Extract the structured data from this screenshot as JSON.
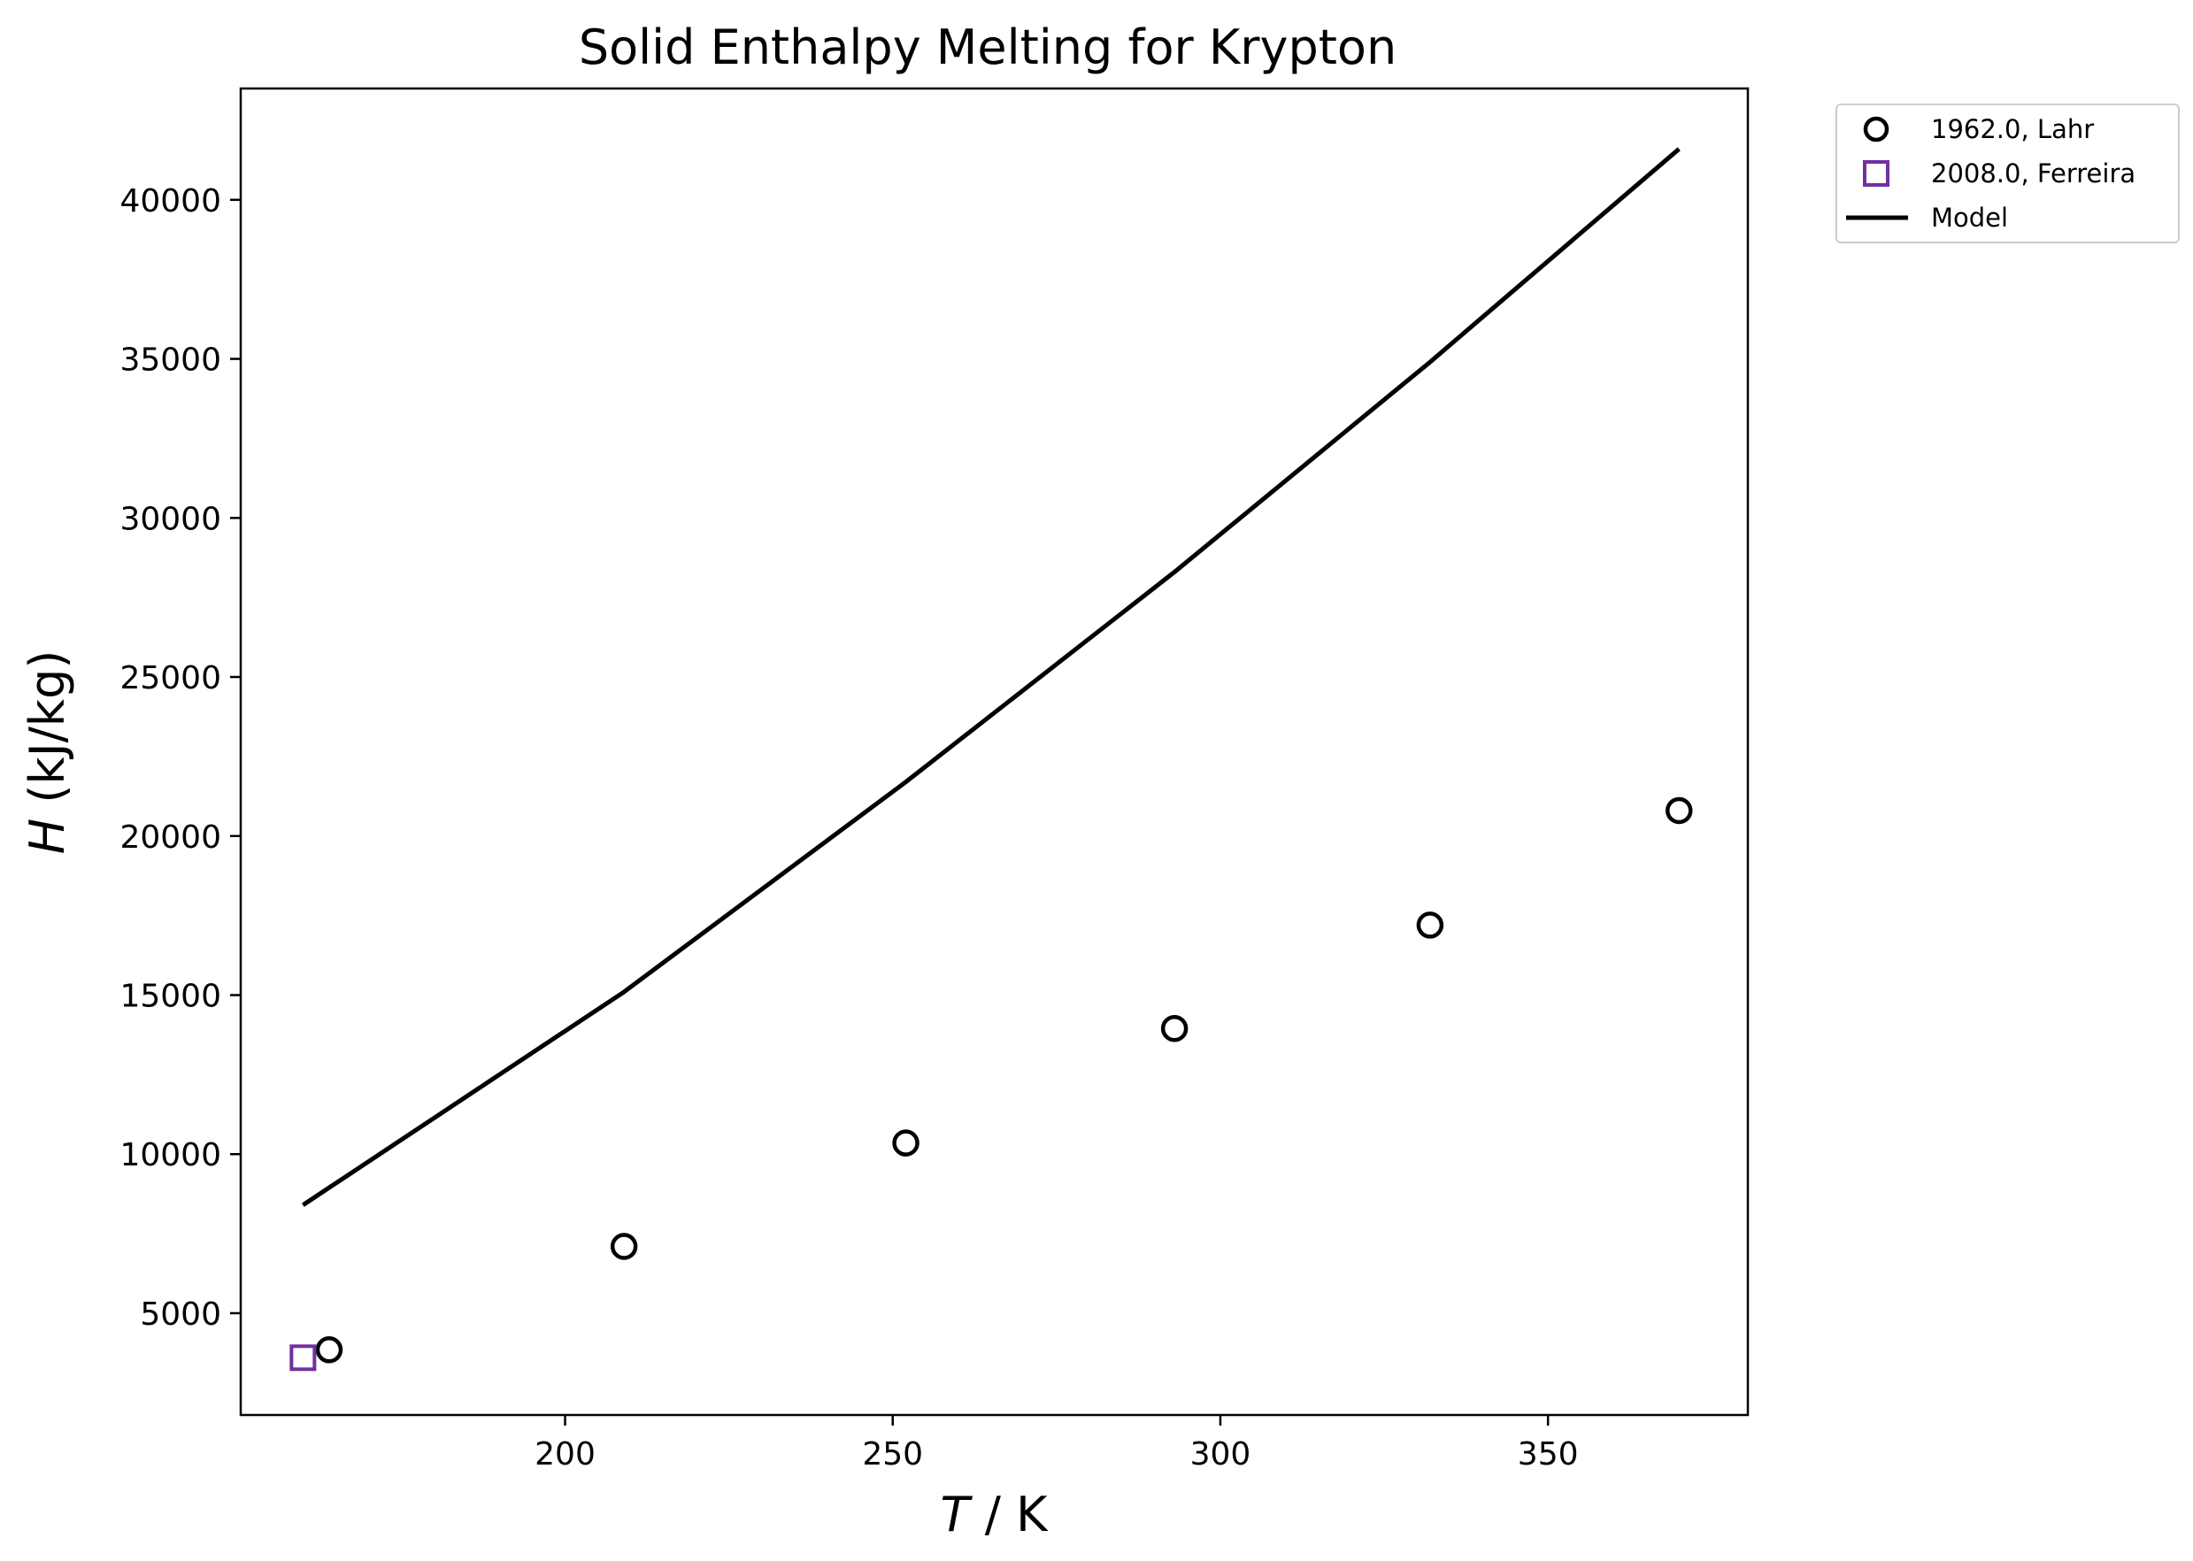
{
  "chart_data": {
    "type": "scatter",
    "title": "Solid Enthalpy Melting for Krypton",
    "xlabel": {
      "var": "T",
      "rest": " / K"
    },
    "ylabel": {
      "var": "H",
      "rest": " (kJ/kg)"
    },
    "xlim": [
      150.5,
      380.5
    ],
    "ylim": [
      1800,
      43500
    ],
    "xticks": [
      200,
      250,
      300,
      350
    ],
    "yticks": [
      5000,
      10000,
      15000,
      20000,
      25000,
      30000,
      35000,
      40000
    ],
    "grid": false,
    "legend_position": "outside-top-right",
    "series": [
      {
        "name": "1962.0, Lahr",
        "kind": "scatter",
        "marker": "circle",
        "color": "#000000",
        "points": [
          [
            164,
            3850
          ],
          [
            209,
            7100
          ],
          [
            252,
            10350
          ],
          [
            293,
            13950
          ],
          [
            332,
            17200
          ],
          [
            370,
            20800
          ]
        ]
      },
      {
        "name": "2008.0, Ferreira",
        "kind": "scatter",
        "marker": "square",
        "color": "#7030a0",
        "points": [
          [
            160,
            3600
          ]
        ]
      },
      {
        "name": "Model",
        "kind": "line",
        "color": "#000000",
        "points": [
          [
            160,
            8400
          ],
          [
            209,
            15100
          ],
          [
            252,
            21700
          ],
          [
            293,
            28300
          ],
          [
            332,
            34900
          ],
          [
            370,
            41600
          ]
        ]
      }
    ]
  }
}
